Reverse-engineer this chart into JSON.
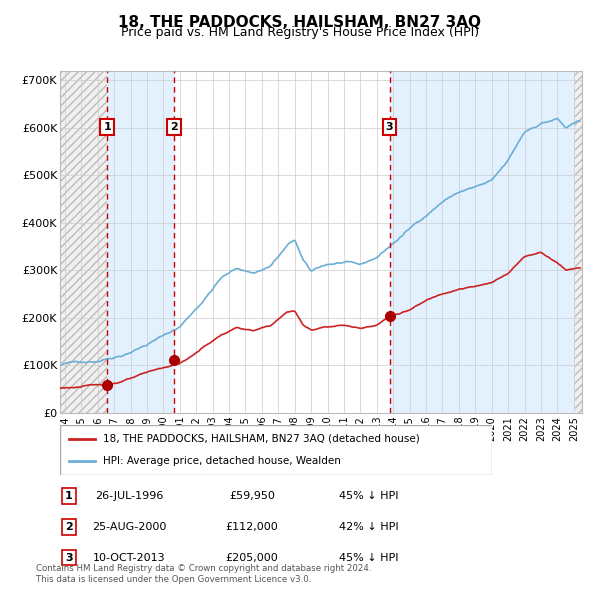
{
  "title": "18, THE PADDOCKS, HAILSHAM, BN27 3AQ",
  "subtitle": "Price paid vs. HM Land Registry's House Price Index (HPI)",
  "legend_line1": "18, THE PADDOCKS, HAILSHAM, BN27 3AQ (detached house)",
  "legend_line2": "HPI: Average price, detached house, Wealden",
  "footer1": "Contains HM Land Registry data © Crown copyright and database right 2024.",
  "footer2": "This data is licensed under the Open Government Licence v3.0.",
  "transactions": [
    {
      "num": 1,
      "date": "26-JUL-1996",
      "price": 59950,
      "pct": "45%",
      "x_year": 1996.57
    },
    {
      "num": 2,
      "date": "25-AUG-2000",
      "price": 112000,
      "pct": "42%",
      "x_year": 2000.65
    },
    {
      "num": 3,
      "date": "10-OCT-2013",
      "price": 205000,
      "pct": "45%",
      "x_year": 2013.78
    }
  ],
  "hpi_line_color": "#6aaed6",
  "price_color": "#cc2222",
  "dot_color": "#aa0000",
  "vline_color": "#cc0000",
  "bg_shade_color": "#ddeeff",
  "ylim": [
    0,
    720000
  ],
  "xlim_start": 1993.7,
  "xlim_end": 2025.5,
  "yticks": [
    0,
    100000,
    200000,
    300000,
    400000,
    500000,
    600000,
    700000
  ],
  "ytick_labels": [
    "£0",
    "£100K",
    "£200K",
    "£300K",
    "£400K",
    "£500K",
    "£600K",
    "£700K"
  ],
  "xtick_years": [
    1994,
    1995,
    1996,
    1997,
    1998,
    1999,
    2000,
    2001,
    2002,
    2003,
    2004,
    2005,
    2006,
    2007,
    2008,
    2009,
    2010,
    2011,
    2012,
    2013,
    2014,
    2015,
    2016,
    2017,
    2018,
    2019,
    2020,
    2021,
    2022,
    2023,
    2024,
    2025
  ]
}
